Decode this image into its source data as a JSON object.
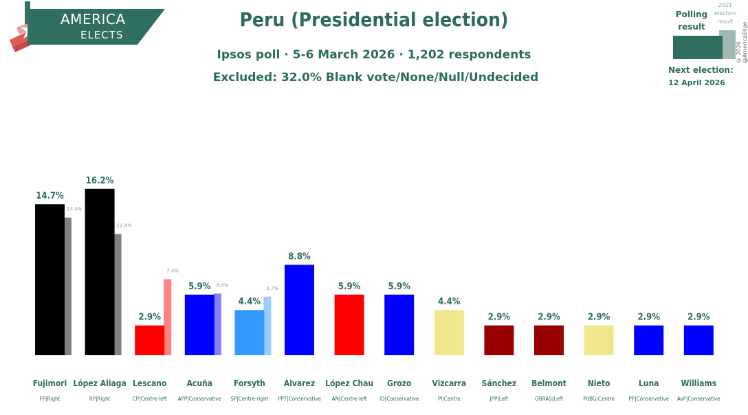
{
  "logo": {
    "line1": "AMERICA",
    "line2": "ELECTS"
  },
  "header": {
    "title": "Peru (Presidential election)",
    "subtitle": "Ipsos poll · 5-6 March 2026 · 1,202 respondents",
    "excluded": "Excluded: 32.0% Blank vote/None/Null/Undecided"
  },
  "legend": {
    "poll_label": "Polling result",
    "prev_label": "2021 election result"
  },
  "copyright": "© 2026 @AmericaElige",
  "next_election": {
    "label": "Next election:",
    "date": "12 April 2026"
  },
  "chart_data": {
    "type": "bar",
    "title": "Peru (Presidential election)",
    "ylim": [
      0,
      18
    ],
    "categories": [
      "Fujimori",
      "López Aliaga",
      "Lescano",
      "Acuña",
      "Forsyth",
      "Álvarez",
      "López Chau",
      "Grozo",
      "Vizcarra",
      "Sánchez",
      "Belmont",
      "Nieto",
      "Luna",
      "Williams"
    ],
    "parties": [
      "FP|Right",
      "RP|Right",
      "CP|Centre-left",
      "APP|Conservative",
      "SP|Centre-right",
      "PPT|Conservative",
      "AN|Centre-left",
      "ID|Conservative",
      "PI|Centre",
      "JPP|Left",
      "OBRAS|Left",
      "PdBG|Centre",
      "PP|Conservative",
      "AvP|Conservative"
    ],
    "values": [
      14.7,
      16.2,
      2.9,
      5.9,
      4.4,
      8.8,
      5.9,
      5.9,
      4.4,
      2.9,
      2.9,
      2.9,
      2.9,
      2.9
    ],
    "value_labels": [
      "14.7%",
      "16.2%",
      "2.9%",
      "5.9%",
      "4.4%",
      "8.8%",
      "5.9%",
      "5.9%",
      "4.4%",
      "2.9%",
      "2.9%",
      "2.9%",
      "2.9%",
      "2.9%"
    ],
    "previous": [
      13.4,
      11.8,
      7.4,
      6.0,
      5.7,
      null,
      null,
      null,
      null,
      null,
      null,
      null,
      null,
      null
    ],
    "previous_labels": [
      "13.4%",
      "11.8%",
      "7.4%",
      "6.0%",
      "5.7%",
      "",
      "",
      "",
      "",
      "",
      "",
      "",
      "",
      ""
    ],
    "colors": [
      "#000000",
      "#000000",
      "#ff0000",
      "#0000ff",
      "#3399ff",
      "#0000ff",
      "#ff0000",
      "#0000ff",
      "#f0e68c",
      "#990000",
      "#990000",
      "#f0e68c",
      "#0000ff",
      "#0000ff"
    ],
    "prev_colors": [
      "#808080",
      "#808080",
      "#ff8080",
      "#8080ff",
      "#99ccff",
      "",
      "",
      "",
      "",
      "",
      "",
      "",
      "",
      ""
    ],
    "series": [
      {
        "name": "Polling result"
      },
      {
        "name": "2021 election result"
      }
    ]
  }
}
